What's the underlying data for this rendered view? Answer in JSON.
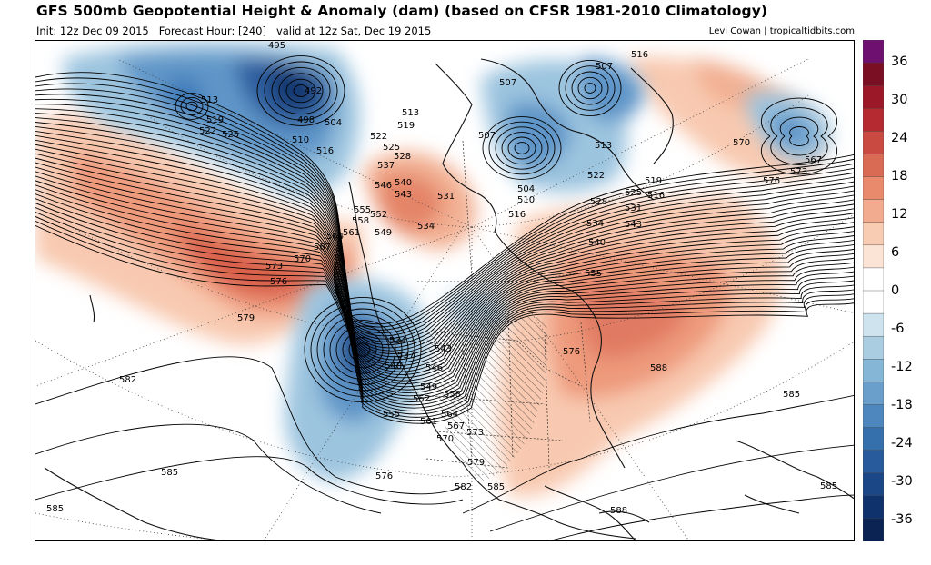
{
  "header": {
    "title": "GFS 500mb Geopotential Height & Anomaly (dam) (based on CFSR 1981-2010 Climatology)",
    "init": "Init: 12z Dec 09 2015",
    "forecast_hour": "Forecast Hour: [240]",
    "valid": "valid at 12z Sat, Dec 19 2015",
    "credit": "Levi Cowan | tropicaltidbits.com"
  },
  "colorbar": {
    "ticks": [
      "36",
      "30",
      "24",
      "18",
      "12",
      "6",
      "0",
      "-6",
      "-12",
      "-18",
      "-24",
      "-30",
      "-36"
    ],
    "colors": [
      "#6e1070",
      "#7a0f24",
      "#9a1828",
      "#b52a30",
      "#c84a40",
      "#d96a54",
      "#e98a6c",
      "#f2ab8f",
      "#f8cbb3",
      "#fbe3d5",
      "#ffffff",
      "#ffffff",
      "#cfe3ef",
      "#aacde2",
      "#86b6d6",
      "#6a9fcb",
      "#4d87bd",
      "#3570ad",
      "#275b9c",
      "#1b4786",
      "#10326c",
      "#0a2352"
    ]
  },
  "map": {
    "height_labels": [
      {
        "text": "495"
      },
      {
        "text": "492"
      },
      {
        "text": "498"
      },
      {
        "text": "504"
      },
      {
        "text": "513"
      },
      {
        "text": "519"
      },
      {
        "text": "522"
      },
      {
        "text": "525"
      },
      {
        "text": "510"
      },
      {
        "text": "516"
      },
      {
        "text": "522"
      },
      {
        "text": "525"
      },
      {
        "text": "528"
      },
      {
        "text": "537"
      },
      {
        "text": "540"
      },
      {
        "text": "546"
      },
      {
        "text": "543"
      },
      {
        "text": "555"
      },
      {
        "text": "558"
      },
      {
        "text": "561"
      },
      {
        "text": "564"
      },
      {
        "text": "567"
      },
      {
        "text": "570"
      },
      {
        "text": "573"
      },
      {
        "text": "576"
      },
      {
        "text": "579"
      },
      {
        "text": "582"
      },
      {
        "text": "585"
      },
      {
        "text": "585"
      },
      {
        "text": "513"
      },
      {
        "text": "519"
      },
      {
        "text": "531"
      },
      {
        "text": "534"
      },
      {
        "text": "552"
      },
      {
        "text": "549"
      },
      {
        "text": "534"
      },
      {
        "text": "537"
      },
      {
        "text": "540"
      },
      {
        "text": "543"
      },
      {
        "text": "546"
      },
      {
        "text": "549"
      },
      {
        "text": "552"
      },
      {
        "text": "558"
      },
      {
        "text": "561"
      },
      {
        "text": "564"
      },
      {
        "text": "567"
      },
      {
        "text": "570"
      },
      {
        "text": "573"
      },
      {
        "text": "555"
      },
      {
        "text": "579"
      },
      {
        "text": "582"
      },
      {
        "text": "585"
      },
      {
        "text": "576"
      },
      {
        "text": "588"
      },
      {
        "text": "588"
      },
      {
        "text": "585"
      },
      {
        "text": "585"
      },
      {
        "text": "516"
      },
      {
        "text": "507"
      },
      {
        "text": "504"
      },
      {
        "text": "510"
      },
      {
        "text": "516"
      },
      {
        "text": "507"
      },
      {
        "text": "513"
      },
      {
        "text": "522"
      },
      {
        "text": "528"
      },
      {
        "text": "525"
      },
      {
        "text": "531"
      },
      {
        "text": "534"
      },
      {
        "text": "540"
      },
      {
        "text": "543"
      },
      {
        "text": "555"
      },
      {
        "text": "519"
      },
      {
        "text": "516"
      },
      {
        "text": "507"
      },
      {
        "text": "570"
      },
      {
        "text": "567"
      },
      {
        "text": "573"
      },
      {
        "text": "576"
      },
      {
        "text": "576"
      }
    ]
  }
}
